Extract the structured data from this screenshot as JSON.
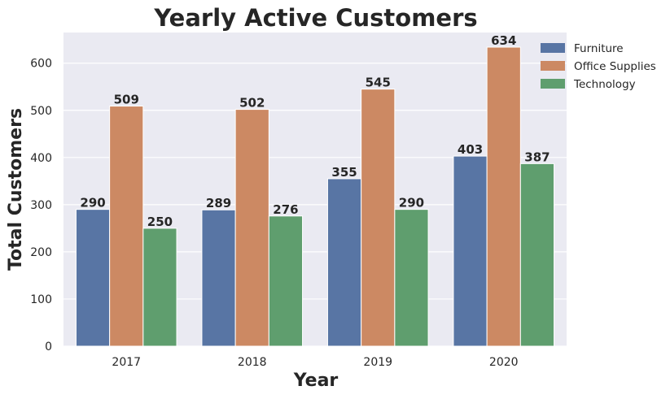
{
  "chart_data": {
    "type": "bar",
    "title": "Yearly Active Customers",
    "xlabel": "Year",
    "ylabel": "Total Customers",
    "categories": [
      "2017",
      "2018",
      "2019",
      "2020"
    ],
    "series": [
      {
        "name": "Furniture",
        "color": "#5875a4",
        "values": [
          290,
          289,
          355,
          403
        ]
      },
      {
        "name": "Office Supplies",
        "color": "#cc8963",
        "values": [
          509,
          502,
          545,
          634
        ]
      },
      {
        "name": "Technology",
        "color": "#5f9e6e",
        "values": [
          250,
          276,
          290,
          387
        ]
      }
    ],
    "ylim": [
      0,
      665
    ],
    "yticks": [
      0,
      100,
      200,
      300,
      400,
      500,
      600
    ],
    "grid": true,
    "legend_position": "top-right",
    "plot_background": "#eaeaf2"
  }
}
